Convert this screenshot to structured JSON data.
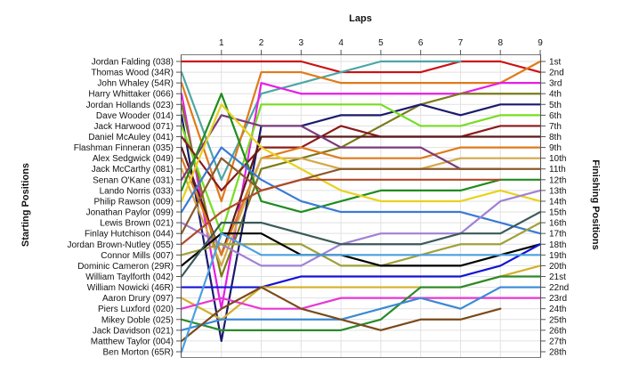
{
  "chart_data": {
    "type": "line",
    "title": "",
    "top_axis_label": "Laps",
    "left_axis_label": "Starting Positions",
    "right_axis_label": "Finishing Positions",
    "x_ticks": [
      1,
      2,
      3,
      4,
      5,
      6,
      7,
      8,
      9
    ],
    "starting_labels": [
      "Jordan Falding (038)",
      "Thomas Wood (34R)",
      "John Whaley (54R)",
      "Harry Whittaker (066)",
      "Jordan Hollands (023)",
      "Dave Wooder (014)",
      "Jack Harwood (071)",
      "Daniel McAuley (041)",
      "Flashman Finneran (035)",
      "Alex Sedgwick (049)",
      "Jack McCarthy (081)",
      "Senan O'Kane (031)",
      "Lando Norris (033)",
      "Philip Rawson (009)",
      "Jonathan Paylor (099)",
      "Lewis Brown (021)",
      "Finlay Hutchison (044)",
      "Jordan Brown-Nutley (055)",
      "Connor Mills (007)",
      "Dominic Cameron (29R)",
      "William Taylforth (042)",
      "William Nowicki (46R)",
      "Aaron Drury (097)",
      "Piers Luxford (020)",
      "Mikey Doble (025)",
      "Jack Davidson (021)",
      "Matthew Taylor (004)",
      "Ben Morton (65R)"
    ],
    "finishing_labels": [
      "1st",
      "2nd",
      "3rd",
      "4th",
      "5th",
      "6th",
      "7th",
      "8th",
      "9th",
      "10th",
      "11th",
      "12th",
      "13th",
      "14th",
      "15th",
      "16th",
      "17th",
      "18th",
      "19th",
      "20th",
      "21st",
      "22nd",
      "23rd",
      "24th",
      "25th",
      "26th",
      "27th",
      "28th"
    ],
    "y_range": [
      1,
      28
    ],
    "x_range": [
      0,
      9
    ],
    "grid": true,
    "series": [
      {
        "color": "#cc1111",
        "values": [
          1,
          1,
          1,
          1,
          2,
          2,
          2,
          1,
          1,
          2
        ]
      },
      {
        "color": "#4da6a6",
        "values": [
          2,
          12,
          4,
          3,
          2,
          1,
          1,
          1
        ]
      },
      {
        "color": "#e07a1a",
        "values": [
          3,
          14,
          2,
          2,
          3,
          3,
          3,
          3,
          3,
          1
        ]
      },
      {
        "color": "#e61ee6",
        "values": [
          4,
          24,
          3,
          4,
          4,
          4,
          4,
          4,
          3,
          3
        ]
      },
      {
        "color": "#7a7a1a",
        "values": [
          5,
          21,
          11,
          10,
          9,
          7,
          5,
          4,
          4,
          4
        ]
      },
      {
        "color": "#1a1a6e",
        "values": [
          6,
          27,
          7,
          7,
          6,
          6,
          5,
          6,
          5,
          5
        ]
      },
      {
        "color": "#77dd22",
        "values": [
          7,
          17,
          5,
          5,
          5,
          5,
          7,
          7,
          6,
          6
        ]
      },
      {
        "color": "#8b1a1a",
        "values": [
          8,
          13,
          9,
          9,
          7,
          8,
          8,
          8,
          7,
          7
        ]
      },
      {
        "color": "#5a1a1a",
        "values": [
          9,
          19,
          8,
          8,
          8,
          8,
          8,
          8,
          8,
          8
        ]
      },
      {
        "color": "#e07a1a",
        "values": [
          10,
          19,
          10,
          9,
          10,
          10,
          10,
          9,
          9,
          9
        ]
      },
      {
        "color": "#d4a84a",
        "values": [
          11,
          20,
          10,
          10,
          11,
          11,
          11,
          10,
          10,
          10
        ]
      },
      {
        "color": "#7b3a7b",
        "values": [
          12,
          6,
          7,
          7,
          9,
          9,
          9,
          11,
          11
        ]
      },
      {
        "color": "#1e8c1e",
        "values": [
          13,
          4,
          14,
          15,
          14,
          13,
          13,
          13,
          12,
          12
        ]
      },
      {
        "color": "#e8d21e",
        "values": [
          14,
          5,
          9,
          11,
          13,
          14,
          14,
          14,
          13,
          14
        ]
      },
      {
        "color": "#3a7ad4",
        "values": [
          15,
          9,
          12,
          14,
          15,
          15,
          15,
          15,
          16,
          17
        ]
      },
      {
        "color": "#a080d4",
        "values": [
          16,
          18,
          20,
          20,
          18,
          17,
          17,
          17,
          14,
          13
        ]
      },
      {
        "color": "#8b5a2b",
        "values": [
          17,
          10,
          13,
          12,
          11,
          11,
          11,
          11,
          11,
          11
        ]
      },
      {
        "color": "#b04a2a",
        "values": [
          18,
          15,
          13,
          12,
          12,
          12,
          12,
          12,
          12
        ]
      },
      {
        "color": "#a0a03a",
        "values": [
          19,
          18,
          18,
          18,
          20,
          20,
          19,
          18,
          18,
          16
        ]
      },
      {
        "color": "#000000",
        "values": [
          20,
          17,
          17,
          19,
          19,
          20,
          20,
          20,
          19,
          18
        ]
      },
      {
        "color": "#3a5a5a",
        "values": [
          21,
          16,
          16,
          17,
          18,
          18,
          18,
          17,
          17,
          15
        ]
      },
      {
        "color": "#1414d4",
        "values": [
          22,
          22,
          22,
          21,
          21,
          21,
          21,
          21,
          20,
          18
        ]
      },
      {
        "color": "#d4b02a",
        "values": [
          23,
          25,
          22,
          22,
          22,
          22,
          22,
          22,
          21,
          20
        ]
      },
      {
        "color": "#e638d4",
        "values": [
          24,
          23,
          24,
          24,
          23,
          23,
          23,
          23,
          23,
          23
        ]
      },
      {
        "color": "#2a8a2a",
        "values": [
          25,
          26,
          26,
          26,
          26,
          25,
          22,
          22,
          21,
          21
        ]
      },
      {
        "color": "#3a8ad4",
        "values": [
          26,
          25,
          25,
          25,
          25,
          24,
          23,
          24,
          22,
          22
        ]
      },
      {
        "color": "#7a4a1a",
        "values": [
          27,
          24,
          22,
          24,
          25,
          26,
          25,
          25,
          24
        ]
      },
      {
        "color": "#4aa0e0",
        "values": [
          28,
          17,
          19,
          19,
          19,
          19,
          19,
          19,
          19,
          19
        ]
      }
    ]
  }
}
